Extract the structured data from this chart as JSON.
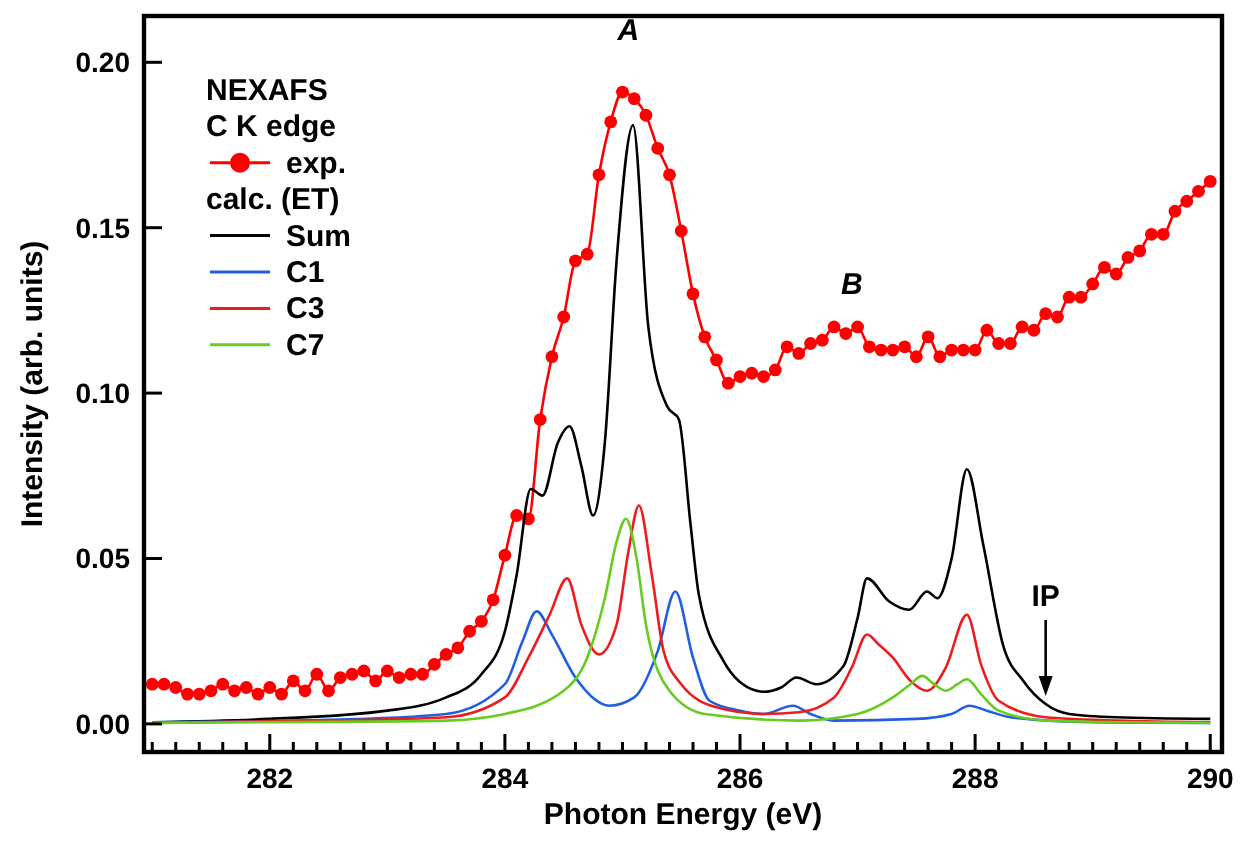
{
  "chart_data": {
    "type": "line",
    "xlabel": "Photon Energy (eV)",
    "ylabel": "Intensity (arb. units)",
    "legend_title": "NEXAFS C K edge",
    "legend": "top left",
    "xlim": [
      280.93,
      290.1
    ],
    "ylim": [
      -0.0085,
      0.214
    ],
    "xticks": [
      {
        "value": 281,
        "label": null
      },
      {
        "value": 281.2,
        "label": null
      },
      {
        "value": 281.4,
        "label": null
      },
      {
        "value": 281.6,
        "label": null
      },
      {
        "value": 281.8,
        "label": null
      },
      282,
      {
        "value": 282.2,
        "label": null
      },
      {
        "value": 282.4,
        "label": null
      },
      {
        "value": 282.6,
        "label": null
      },
      {
        "value": 282.8,
        "label": null
      },
      {
        "value": 283,
        "label": null
      },
      {
        "value": 283.2,
        "label": null
      },
      {
        "value": 283.4,
        "label": null
      },
      {
        "value": 283.6,
        "label": null
      },
      {
        "value": 283.8,
        "label": null
      },
      284,
      {
        "value": 284.2,
        "label": null
      },
      {
        "value": 284.4,
        "label": null
      },
      {
        "value": 284.6,
        "label": null
      },
      {
        "value": 284.8,
        "label": null
      },
      {
        "value": 285,
        "label": null
      },
      {
        "value": 285.2,
        "label": null
      },
      {
        "value": 285.4,
        "label": null
      },
      {
        "value": 285.6,
        "label": null
      },
      {
        "value": 285.8,
        "label": null
      },
      286,
      {
        "value": 286.2,
        "label": null
      },
      {
        "value": 286.4,
        "label": null
      },
      {
        "value": 286.6,
        "label": null
      },
      {
        "value": 286.8,
        "label": null
      },
      {
        "value": 287,
        "label": null
      },
      {
        "value": 287.2,
        "label": null
      },
      {
        "value": 287.4,
        "label": null
      },
      {
        "value": 287.6,
        "label": null
      },
      {
        "value": 287.8,
        "label": null
      },
      288,
      {
        "value": 288.2,
        "label": null
      },
      {
        "value": 288.4,
        "label": null
      },
      {
        "value": 288.6,
        "label": null
      },
      {
        "value": 288.8,
        "label": null
      },
      {
        "value": 289,
        "label": null
      },
      {
        "value": 289.2,
        "label": null
      },
      {
        "value": 289.4,
        "label": null
      },
      {
        "value": 289.6,
        "label": null
      },
      {
        "value": 289.8,
        "label": null
      },
      290
    ],
    "yticks": [
      {
        "value": 0,
        "label": "0.00"
      },
      {
        "value": 0.05,
        "label": "0.05"
      },
      {
        "value": 0.1,
        "label": "0.10"
      },
      {
        "value": 0.15,
        "label": "0.15"
      },
      {
        "value": 0.2,
        "label": "0.20"
      }
    ],
    "annotations": [
      "calc. (ET)",
      {
        "text": "A",
        "x": 285.0,
        "y": 0.191
      },
      {
        "text": "B",
        "x": 286.9,
        "y": 0.118
      },
      {
        "text": "IP",
        "x": 288.6,
        "y": 0.006
      }
    ],
    "series": [
      {
        "name": "exp.",
        "color": "#ff0000",
        "marker": "circle",
        "x": [
          281.0,
          281.1,
          281.2,
          281.3,
          281.4,
          281.5,
          281.6,
          281.7,
          281.8,
          281.9,
          282.0,
          282.1,
          282.2,
          282.3,
          282.4,
          282.5,
          282.6,
          282.7,
          282.8,
          282.9,
          283.0,
          283.1,
          283.2,
          283.3,
          283.4,
          283.5,
          283.6,
          283.7,
          283.8,
          283.9,
          284.0,
          284.1,
          284.2,
          284.3,
          284.4,
          284.5,
          284.6,
          284.7,
          284.8,
          284.9,
          285.0,
          285.1,
          285.2,
          285.3,
          285.4,
          285.5,
          285.6,
          285.7,
          285.8,
          285.9,
          286.0,
          286.1,
          286.2,
          286.3,
          286.4,
          286.5,
          286.6,
          286.7,
          286.8,
          286.9,
          287.0,
          287.1,
          287.2,
          287.3,
          287.4,
          287.5,
          287.6,
          287.7,
          287.8,
          287.9,
          288.0,
          288.1,
          288.2,
          288.3,
          288.4,
          288.5,
          288.6,
          288.7,
          288.8,
          288.9,
          289.0,
          289.1,
          289.2,
          289.3,
          289.4,
          289.5,
          289.6,
          289.7,
          289.8,
          289.9,
          290.0
        ],
        "values": [
          0.012,
          0.012,
          0.011,
          0.009,
          0.009,
          0.01,
          0.012,
          0.01,
          0.011,
          0.009,
          0.011,
          0.009,
          0.013,
          0.01,
          0.015,
          0.01,
          0.014,
          0.015,
          0.016,
          0.013,
          0.016,
          0.014,
          0.015,
          0.015,
          0.018,
          0.021,
          0.023,
          0.028,
          0.031,
          0.0375,
          0.051,
          0.063,
          0.062,
          0.092,
          0.111,
          0.123,
          0.14,
          0.142,
          0.166,
          0.182,
          0.191,
          0.189,
          0.184,
          0.174,
          0.166,
          0.149,
          0.13,
          0.117,
          0.11,
          0.103,
          0.105,
          0.106,
          0.105,
          0.107,
          0.114,
          0.112,
          0.115,
          0.116,
          0.12,
          0.118,
          0.12,
          0.114,
          0.113,
          0.113,
          0.114,
          0.111,
          0.117,
          0.111,
          0.113,
          0.113,
          0.113,
          0.119,
          0.115,
          0.115,
          0.12,
          0.119,
          0.124,
          0.123,
          0.129,
          0.129,
          0.133,
          0.138,
          0.136,
          0.141,
          0.143,
          0.148,
          0.148,
          0.155,
          0.158,
          0.161,
          0.164
        ]
      },
      {
        "name": "Sum",
        "color": "#000000",
        "marker": "none",
        "x": [
          281.0,
          282.0,
          283.0,
          283.5,
          283.8,
          284.0,
          284.1,
          284.22,
          284.32,
          284.45,
          284.55,
          284.65,
          284.75,
          284.85,
          284.95,
          285.09,
          285.22,
          285.38,
          285.48,
          285.58,
          285.65,
          285.86,
          286.14,
          286.2,
          286.35,
          286.48,
          286.65,
          286.88,
          287.0,
          287.08,
          287.27,
          287.44,
          287.59,
          287.68,
          287.8,
          287.93,
          288.07,
          288.24,
          288.41,
          288.6,
          288.8,
          289.2,
          290.0
        ],
        "values": [
          0.0005,
          0.0015,
          0.004,
          0.008,
          0.015,
          0.028,
          0.045,
          0.071,
          0.069,
          0.085,
          0.09,
          0.078,
          0.063,
          0.085,
          0.14,
          0.181,
          0.12,
          0.096,
          0.092,
          0.06,
          0.039,
          0.019,
          0.01,
          0.0097,
          0.011,
          0.014,
          0.012,
          0.0175,
          0.032,
          0.044,
          0.037,
          0.0345,
          0.04,
          0.038,
          0.05,
          0.077,
          0.054,
          0.0235,
          0.013,
          0.006,
          0.003,
          0.002,
          0.0015
        ]
      },
      {
        "name": "C1",
        "color": "#1f5fe0",
        "marker": "none",
        "x": [
          281.0,
          282.5,
          283.5,
          284.0,
          284.15,
          284.27,
          284.4,
          284.6,
          284.89,
          285.1,
          285.3,
          285.45,
          285.6,
          285.74,
          286.0,
          286.2,
          286.45,
          286.6,
          286.8,
          287.5,
          287.8,
          287.95,
          288.1,
          288.3,
          289.0,
          290.0
        ],
        "values": [
          0.0005,
          0.0012,
          0.003,
          0.012,
          0.025,
          0.034,
          0.027,
          0.014,
          0.0055,
          0.008,
          0.022,
          0.04,
          0.02,
          0.007,
          0.004,
          0.003,
          0.0055,
          0.003,
          0.001,
          0.0015,
          0.003,
          0.0055,
          0.004,
          0.002,
          0.0005,
          0.0003
        ]
      },
      {
        "name": "C3",
        "color": "#ee1c1c",
        "marker": "none",
        "x": [
          281.0,
          282.5,
          283.5,
          284.0,
          284.2,
          284.38,
          284.53,
          284.65,
          284.8,
          284.95,
          285.05,
          285.14,
          285.25,
          285.35,
          285.5,
          285.8,
          286.2,
          286.5,
          286.8,
          286.95,
          287.08,
          287.18,
          287.3,
          287.45,
          287.59,
          287.75,
          287.93,
          288.05,
          288.2,
          288.6,
          289.2,
          290.0
        ],
        "values": [
          0.0003,
          0.001,
          0.002,
          0.008,
          0.02,
          0.033,
          0.044,
          0.03,
          0.021,
          0.03,
          0.052,
          0.066,
          0.045,
          0.022,
          0.012,
          0.005,
          0.003,
          0.0035,
          0.008,
          0.017,
          0.027,
          0.024,
          0.02,
          0.013,
          0.01,
          0.017,
          0.033,
          0.018,
          0.007,
          0.002,
          0.001,
          0.0005
        ]
      },
      {
        "name": "C7",
        "color": "#66cc22",
        "marker": "none",
        "x": [
          281.0,
          282.5,
          283.5,
          284.0,
          284.5,
          284.7,
          284.85,
          284.95,
          285.03,
          285.12,
          285.2,
          285.4,
          285.7,
          286.5,
          287.0,
          287.3,
          287.45,
          287.55,
          287.65,
          287.75,
          287.85,
          287.93,
          288.05,
          288.2,
          288.6,
          289.2,
          290.0
        ],
        "values": [
          0.0003,
          0.0006,
          0.001,
          0.003,
          0.01,
          0.02,
          0.038,
          0.055,
          0.062,
          0.05,
          0.03,
          0.01,
          0.003,
          0.001,
          0.003,
          0.008,
          0.012,
          0.0145,
          0.012,
          0.01,
          0.012,
          0.0135,
          0.009,
          0.004,
          0.001,
          0.0005,
          0.0003
        ]
      }
    ]
  }
}
